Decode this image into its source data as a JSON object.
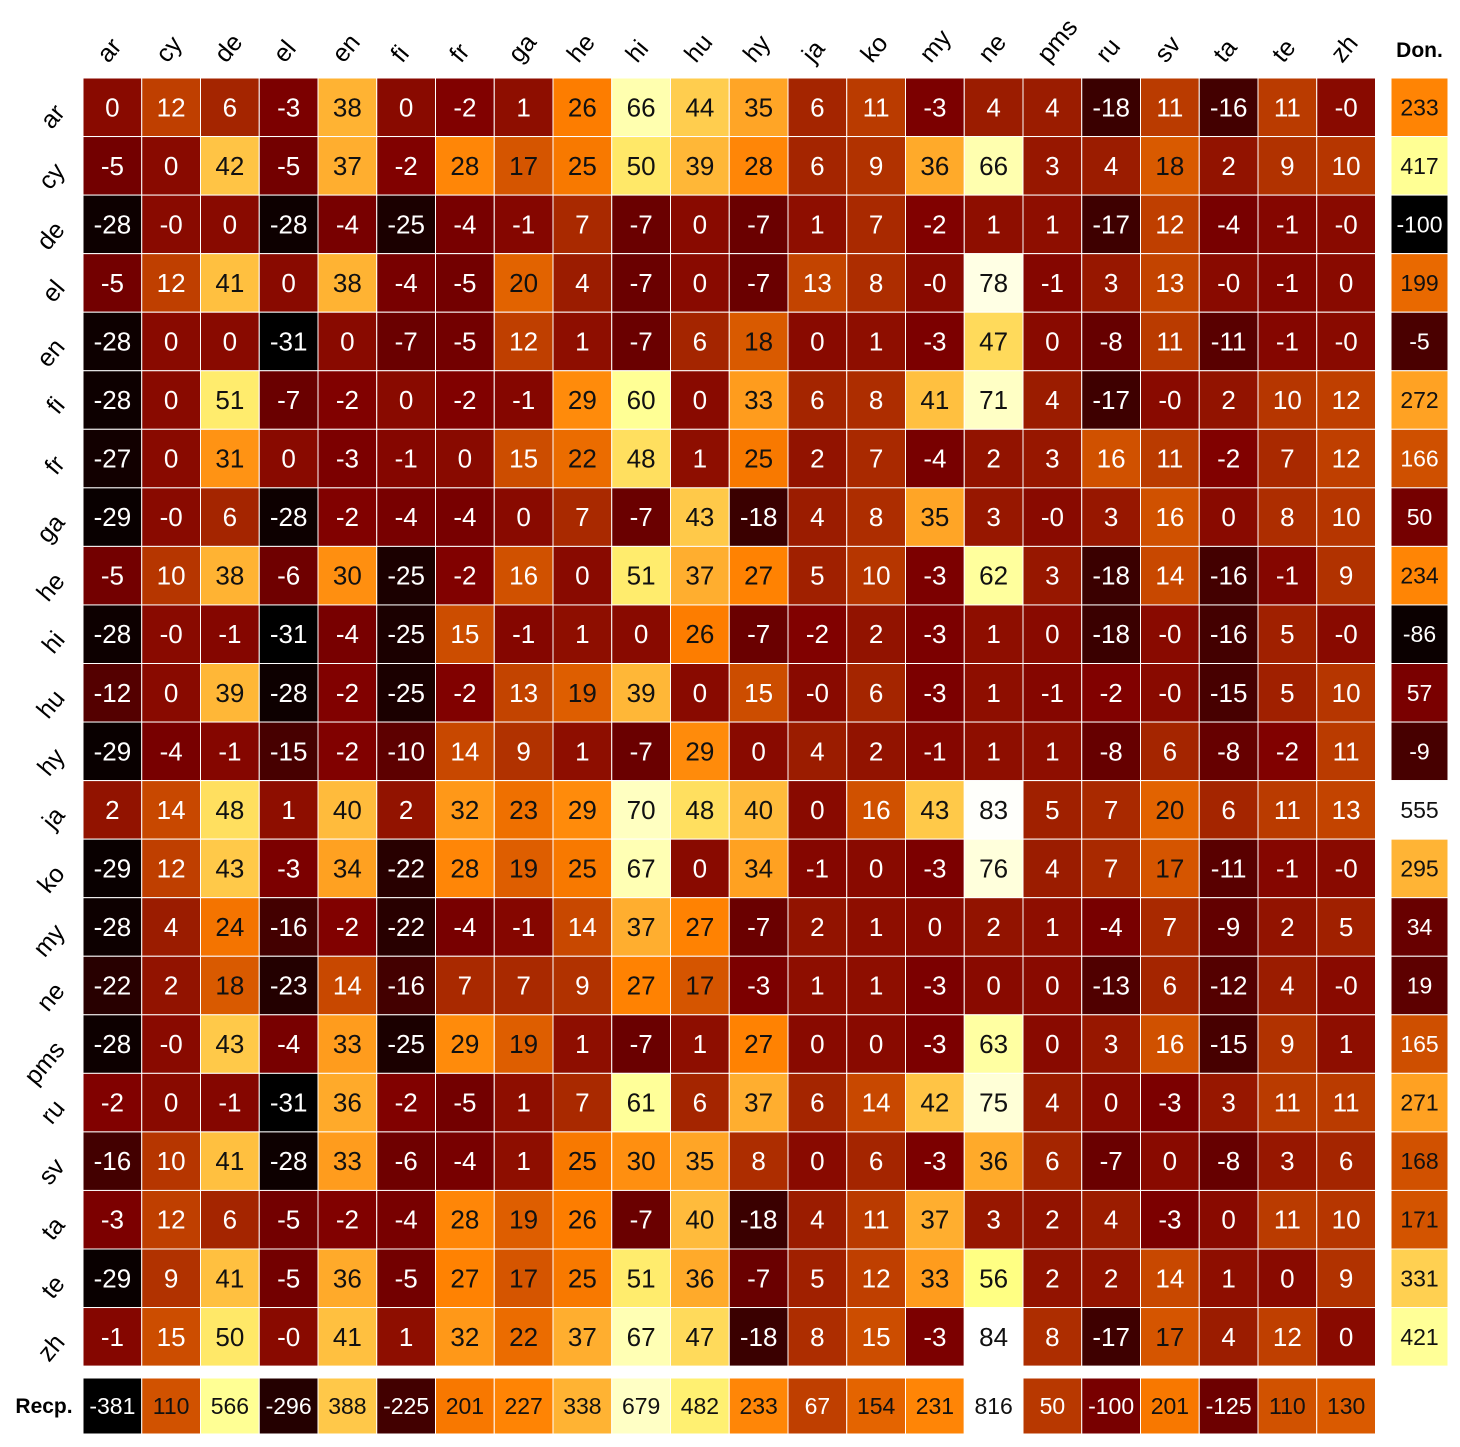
{
  "chart_data": {
    "type": "heatmap",
    "colormap": "afmhot",
    "grid": true,
    "languages": [
      "ar",
      "cy",
      "de",
      "el",
      "en",
      "fi",
      "fr",
      "ga",
      "he",
      "hi",
      "hu",
      "hy",
      "ja",
      "ko",
      "my",
      "ne",
      "pms",
      "ru",
      "sv",
      "ta",
      "te",
      "zh"
    ],
    "matrix": [
      [
        0,
        12,
        6,
        -3,
        38,
        0,
        -2,
        1,
        26,
        66,
        44,
        35,
        6,
        11,
        -3,
        4,
        4,
        -18,
        11,
        -16,
        11,
        "-0"
      ],
      [
        -5,
        0,
        42,
        -5,
        37,
        -2,
        28,
        17,
        25,
        50,
        39,
        28,
        6,
        9,
        36,
        66,
        3,
        4,
        18,
        2,
        9,
        10
      ],
      [
        -28,
        "-0",
        0,
        -28,
        -4,
        -25,
        -4,
        -1,
        7,
        -7,
        0,
        -7,
        1,
        7,
        -2,
        1,
        1,
        -17,
        12,
        -4,
        -1,
        "-0"
      ],
      [
        -5,
        12,
        41,
        0,
        38,
        -4,
        -5,
        20,
        4,
        -7,
        0,
        -7,
        13,
        8,
        "-0",
        78,
        -1,
        3,
        13,
        "-0",
        -1,
        0
      ],
      [
        -28,
        0,
        0,
        -31,
        0,
        -7,
        -5,
        12,
        1,
        -7,
        6,
        18,
        0,
        1,
        -3,
        47,
        0,
        -8,
        11,
        -11,
        -1,
        "-0"
      ],
      [
        -28,
        0,
        51,
        -7,
        -2,
        0,
        -2,
        -1,
        29,
        60,
        0,
        33,
        6,
        8,
        41,
        71,
        4,
        -17,
        "-0",
        2,
        10,
        12
      ],
      [
        -27,
        0,
        31,
        0,
        -3,
        -1,
        0,
        15,
        22,
        48,
        1,
        25,
        2,
        7,
        -4,
        2,
        3,
        16,
        11,
        -2,
        7,
        12
      ],
      [
        -29,
        "-0",
        6,
        -28,
        -2,
        -4,
        -4,
        0,
        7,
        -7,
        43,
        -18,
        4,
        8,
        35,
        3,
        "-0",
        3,
        16,
        0,
        8,
        10
      ],
      [
        -5,
        10,
        38,
        -6,
        30,
        -25,
        -2,
        16,
        0,
        51,
        37,
        27,
        5,
        10,
        -3,
        62,
        3,
        -18,
        14,
        -16,
        -1,
        9
      ],
      [
        -28,
        "-0",
        -1,
        -31,
        -4,
        -25,
        15,
        -1,
        1,
        0,
        26,
        -7,
        -2,
        2,
        -3,
        1,
        0,
        -18,
        "-0",
        -16,
        5,
        "-0"
      ],
      [
        -12,
        0,
        39,
        -28,
        -2,
        -25,
        -2,
        13,
        19,
        39,
        0,
        15,
        "-0",
        6,
        -3,
        1,
        -1,
        -2,
        "-0",
        -15,
        5,
        10
      ],
      [
        -29,
        -4,
        -1,
        -15,
        -2,
        -10,
        14,
        9,
        1,
        -7,
        29,
        0,
        4,
        2,
        -1,
        1,
        1,
        -8,
        6,
        -8,
        -2,
        11
      ],
      [
        2,
        14,
        48,
        1,
        40,
        2,
        32,
        23,
        29,
        70,
        48,
        40,
        0,
        16,
        43,
        83,
        5,
        7,
        20,
        6,
        11,
        13
      ],
      [
        -29,
        12,
        43,
        -3,
        34,
        -22,
        28,
        19,
        25,
        67,
        0,
        34,
        -1,
        0,
        -3,
        76,
        4,
        7,
        17,
        -11,
        -1,
        "-0"
      ],
      [
        -28,
        4,
        24,
        -16,
        -2,
        -22,
        -4,
        -1,
        14,
        37,
        27,
        -7,
        2,
        1,
        0,
        2,
        1,
        -4,
        7,
        -9,
        2,
        5
      ],
      [
        -22,
        2,
        18,
        -23,
        14,
        -16,
        7,
        7,
        9,
        27,
        17,
        -3,
        1,
        1,
        -3,
        0,
        0,
        -13,
        6,
        -12,
        4,
        "-0"
      ],
      [
        -28,
        "-0",
        43,
        -4,
        33,
        -25,
        29,
        19,
        1,
        -7,
        1,
        27,
        0,
        0,
        -3,
        63,
        0,
        3,
        16,
        -15,
        9,
        1
      ],
      [
        -2,
        0,
        -1,
        -31,
        36,
        -2,
        -5,
        1,
        7,
        61,
        6,
        37,
        6,
        14,
        42,
        75,
        4,
        0,
        -3,
        3,
        11,
        11
      ],
      [
        -16,
        10,
        41,
        -28,
        33,
        -6,
        -4,
        1,
        25,
        30,
        35,
        8,
        0,
        6,
        -3,
        36,
        6,
        -7,
        0,
        -8,
        3,
        6
      ],
      [
        -3,
        12,
        6,
        -5,
        -2,
        -4,
        28,
        19,
        26,
        -7,
        40,
        -18,
        4,
        11,
        37,
        3,
        2,
        4,
        -3,
        0,
        11,
        10
      ],
      [
        -29,
        9,
        41,
        -5,
        36,
        -5,
        27,
        17,
        25,
        51,
        36,
        -7,
        5,
        12,
        33,
        56,
        2,
        2,
        14,
        1,
        0,
        9
      ],
      [
        -1,
        15,
        50,
        "-0",
        41,
        1,
        32,
        22,
        37,
        67,
        47,
        -18,
        8,
        15,
        -3,
        84,
        8,
        -17,
        17,
        4,
        12,
        0
      ]
    ],
    "donor_label": "Don.",
    "donor_totals": [
      233,
      417,
      -100,
      199,
      -5,
      272,
      166,
      50,
      234,
      -86,
      57,
      -9,
      555,
      295,
      34,
      19,
      165,
      271,
      168,
      171,
      331,
      421
    ],
    "recipient_label": "Recp.",
    "recipient_totals": [
      -381,
      110,
      566,
      -296,
      388,
      -225,
      201,
      227,
      338,
      679,
      482,
      233,
      67,
      154,
      231,
      816,
      50,
      -100,
      201,
      -125,
      110,
      130
    ]
  }
}
